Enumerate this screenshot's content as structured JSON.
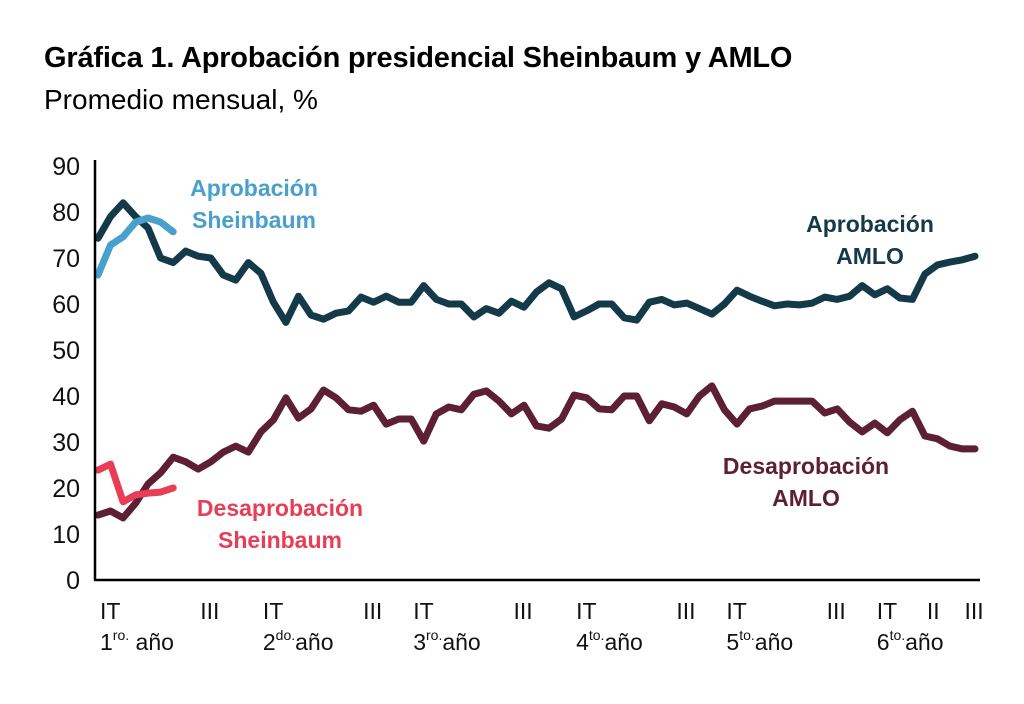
{
  "header": {
    "title": "Gráfica 1.  Aprobación presidencial Sheinbaum y AMLO",
    "subtitle": "Promedio mensual, %"
  },
  "colors": {
    "aprobacion_amlo": "#143a4a",
    "desaprobacion_amlo": "#5c1f33",
    "aprobacion_sheinbaum": "#48a0cc",
    "desaprobacion_sheinbaum": "#e83e55",
    "axis": "#000000"
  },
  "chart_data": {
    "type": "line",
    "title": "Gráfica 1.  Aprobación presidencial Sheinbaum y AMLO",
    "subtitle": "Promedio mensual, %",
    "xlabel": "",
    "ylabel": "",
    "ylim": [
      0,
      90
    ],
    "yticks": [
      "0",
      "10",
      "20",
      "30",
      "40",
      "50",
      "60",
      "70",
      "80",
      "90"
    ],
    "grid": false,
    "n_months": 71,
    "x_quarter_labels": [
      {
        "month": 0,
        "label": "IT"
      },
      {
        "month": 8,
        "label": "III"
      },
      {
        "month": 13,
        "label": "IT"
      },
      {
        "month": 21,
        "label": "III"
      },
      {
        "month": 25,
        "label": "IT"
      },
      {
        "month": 33,
        "label": "III"
      },
      {
        "month": 38,
        "label": "IT"
      },
      {
        "month": 46,
        "label": "III"
      },
      {
        "month": 50,
        "label": "IT"
      },
      {
        "month": 58,
        "label": "III"
      },
      {
        "month": 62,
        "label": "IT"
      },
      {
        "month": 66,
        "label": "II"
      },
      {
        "month": 69,
        "label": "III"
      }
    ],
    "x_year_labels": [
      {
        "month": 0,
        "num": "1",
        "sup": "ro.",
        "text": " año"
      },
      {
        "month": 13,
        "num": "2",
        "sup": "do.",
        "text": "año"
      },
      {
        "month": 25,
        "num": "3",
        "sup": "ro.",
        "text": "año"
      },
      {
        "month": 38,
        "num": "4",
        "sup": "to.",
        "text": "año"
      },
      {
        "month": 50,
        "num": "5",
        "sup": "to.",
        "text": "año"
      },
      {
        "month": 62,
        "num": "6",
        "sup": "to.",
        "text": "año"
      }
    ],
    "series": [
      {
        "name": "Aprobación AMLO",
        "label_lines": [
          "Aprobación",
          "AMLO"
        ],
        "color": "#143a4a",
        "values": [
          74.3,
          79,
          82,
          79,
          76.5,
          70,
          69,
          71.5,
          70.4,
          70,
          66.3,
          65.2,
          69,
          66.7,
          60.4,
          56,
          61.7,
          57.6,
          56.7,
          58,
          58.5,
          61.5,
          60.4,
          61.7,
          60.4,
          60.4,
          64,
          61,
          60,
          60,
          57.2,
          59,
          58,
          60.6,
          59.3,
          62.6,
          64.6,
          63.3,
          57.2,
          58.5,
          60,
          60,
          57,
          56.5,
          60.4,
          61,
          59.8,
          60.2,
          59,
          57.8,
          60,
          63,
          61.7,
          60.6,
          59.6,
          60,
          59.8,
          60.2,
          61.5,
          61,
          61.7,
          64,
          62,
          63.3,
          61.3,
          61,
          66.5,
          68.5,
          69.1,
          69.6,
          70.4
        ]
      },
      {
        "name": "Desaprobación AMLO",
        "label_lines": [
          "Desaprobación",
          "AMLO"
        ],
        "color": "#5c1f33",
        "values": [
          14.1,
          15,
          13.5,
          16.7,
          20.9,
          23.3,
          26.7,
          25.7,
          24.1,
          25.7,
          27.8,
          29.1,
          27.8,
          32.2,
          34.8,
          39.6,
          35.2,
          37.2,
          41.3,
          39.6,
          37,
          36.7,
          38,
          33.9,
          35,
          35,
          30.2,
          36.1,
          37.6,
          37,
          40.4,
          41.1,
          38.9,
          36.1,
          38,
          33.5,
          33,
          35,
          40.2,
          39.6,
          37.2,
          37,
          40,
          40,
          34.6,
          38.3,
          37.6,
          36.1,
          40,
          42.2,
          37,
          33.9,
          37.2,
          37.8,
          38.9,
          38.9,
          38.9,
          38.9,
          36.3,
          37.2,
          34.3,
          32.2,
          34.1,
          32,
          34.8,
          36.7,
          31.3,
          30.7,
          29.1,
          28.5,
          28.5
        ]
      },
      {
        "name": "Aprobación Sheinbaum",
        "label_lines": [
          "Aprobación",
          "Sheinbaum"
        ],
        "color": "#48a0cc",
        "values": [
          66.3,
          72.8,
          74.6,
          77.8,
          78.7,
          77.8,
          75.7
        ]
      },
      {
        "name": "Desaprobación Sheinbaum",
        "label_lines": [
          "Desaprobación",
          "Sheinbaum"
        ],
        "color": "#e83e55",
        "values": [
          23.9,
          25.2,
          17,
          18.5,
          18.9,
          19.1,
          20
        ]
      }
    ]
  }
}
